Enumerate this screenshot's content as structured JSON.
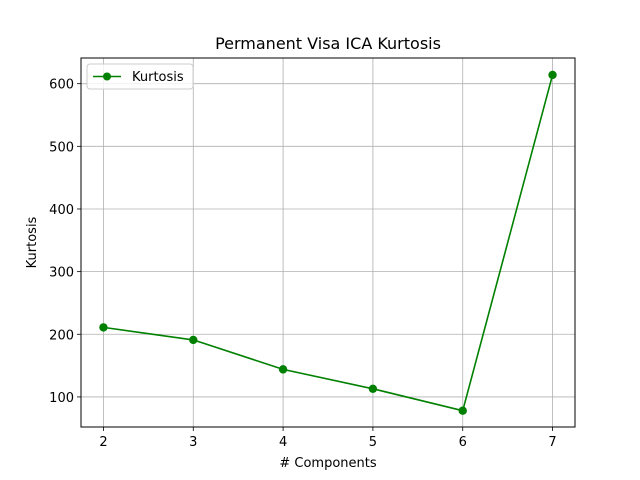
{
  "chart_data": {
    "type": "line",
    "title": "Permanent Visa ICA Kurtosis",
    "xlabel": "# Components",
    "ylabel": "Kurtosis",
    "x": [
      2,
      3,
      4,
      5,
      6,
      7
    ],
    "series": [
      {
        "name": "Kurtosis",
        "values": [
          211,
          191,
          144,
          113,
          78,
          614
        ],
        "color": "#008000",
        "marker": "circle"
      }
    ],
    "xticks": [
      2,
      3,
      4,
      5,
      6,
      7
    ],
    "yticks": [
      100,
      200,
      300,
      400,
      500,
      600
    ],
    "xlim": [
      1.75,
      7.25
    ],
    "ylim": [
      52,
      641
    ],
    "grid": true,
    "legend_position": "top-left"
  }
}
